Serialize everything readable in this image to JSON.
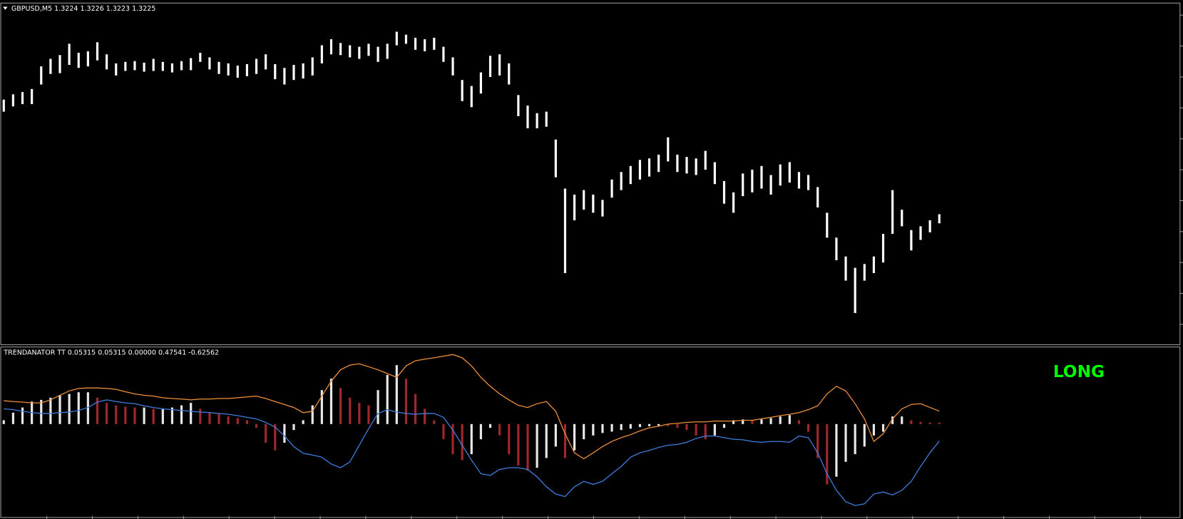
{
  "price_panel": {
    "label": "GBPUSD,M5  1.3224 1.3226 1.3223 1.3225",
    "ylim": [
      1.32085,
      1.32535
    ],
    "color": "#ffffff",
    "high": [
      1.32408,
      1.32415,
      1.32418,
      1.32422,
      1.32452,
      1.32462,
      1.32467,
      1.32482,
      1.3247,
      1.32472,
      1.32484,
      1.32468,
      1.32456,
      1.32458,
      1.32459,
      1.32457,
      1.32462,
      1.32458,
      1.32456,
      1.32459,
      1.32463,
      1.3247,
      1.32464,
      1.32458,
      1.32456,
      1.32453,
      1.32455,
      1.32462,
      1.32468,
      1.32455,
      1.3245,
      1.32454,
      1.32456,
      1.32464,
      1.3248,
      1.32488,
      1.32483,
      1.3248,
      1.32478,
      1.32482,
      1.32478,
      1.32482,
      1.32498,
      1.32494,
      1.3249,
      1.32488,
      1.3249,
      1.32478,
      1.32464,
      1.32434,
      1.32426,
      1.32444,
      1.32466,
      1.32468,
      1.32456,
      1.32414,
      1.324,
      1.3239,
      1.32392,
      1.32355,
      1.3229,
      1.32282,
      1.32288,
      1.32282,
      1.32275,
      1.32302,
      1.32312,
      1.3232,
      1.32328,
      1.3233,
      1.32335,
      1.32358,
      1.32335,
      1.32332,
      1.3233,
      1.3234,
      1.32325,
      1.323,
      1.32285,
      1.3231,
      1.32315,
      1.3232,
      1.32308,
      1.32322,
      1.32325,
      1.32312,
      1.32308,
      1.32292,
      1.32258,
      1.32225,
      1.322,
      1.32185,
      1.3219,
      1.322,
      1.3223,
      1.32288,
      1.32262,
      1.32235,
      1.3224,
      1.32248,
      1.32256
    ],
    "low": [
      1.32392,
      1.32399,
      1.32402,
      1.32402,
      1.32428,
      1.32442,
      1.32443,
      1.32454,
      1.3245,
      1.32452,
      1.3246,
      1.32448,
      1.3244,
      1.32446,
      1.32447,
      1.32445,
      1.32446,
      1.32446,
      1.32444,
      1.32447,
      1.32447,
      1.32458,
      1.32448,
      1.32442,
      1.3244,
      1.32437,
      1.32439,
      1.32442,
      1.32448,
      1.32435,
      1.32428,
      1.32434,
      1.32436,
      1.3244,
      1.32456,
      1.32468,
      1.32467,
      1.32464,
      1.32462,
      1.32466,
      1.32458,
      1.32462,
      1.3248,
      1.32482,
      1.32474,
      1.32472,
      1.32474,
      1.32458,
      1.3244,
      1.32406,
      1.32398,
      1.32416,
      1.32438,
      1.3244,
      1.32428,
      1.32386,
      1.3237,
      1.3237,
      1.32372,
      1.32305,
      1.32178,
      1.32248,
      1.32262,
      1.32258,
      1.32253,
      1.32278,
      1.32288,
      1.32296,
      1.32302,
      1.32306,
      1.32312,
      1.32326,
      1.32312,
      1.3231,
      1.32308,
      1.32315,
      1.32296,
      1.3227,
      1.32258,
      1.3228,
      1.32285,
      1.3229,
      1.32282,
      1.32294,
      1.32298,
      1.3229,
      1.32288,
      1.32265,
      1.32225,
      1.32195,
      1.32168,
      1.32125,
      1.32168,
      1.32178,
      1.32192,
      1.3223,
      1.3224,
      1.32208,
      1.32222,
      1.32232,
      1.32244
    ]
  },
  "indicator_panel": {
    "label": "TRENDANATOR TT 0.05315 0.05315 0.00000 0.47541 -0.62562",
    "ylim": [
      -3.44,
      2.81
    ],
    "histogram": {
      "rising_color": "#e8e8e8",
      "falling_color": "#a0282a",
      "values": [
        0.14,
        0.42,
        0.61,
        0.83,
        0.89,
        0.97,
        1.06,
        1.11,
        1.17,
        1.17,
        0.97,
        0.78,
        0.69,
        0.64,
        0.61,
        0.61,
        0.56,
        0.56,
        0.61,
        0.69,
        0.78,
        0.56,
        0.44,
        0.39,
        0.28,
        0.22,
        0.14,
        -0.14,
        -0.69,
        -0.97,
        -0.69,
        -0.22,
        0.14,
        0.69,
        1.25,
        1.67,
        1.33,
        0.97,
        0.78,
        0.69,
        1.25,
        1.81,
        2.17,
        1.67,
        1.11,
        0.56,
        0.14,
        -0.56,
        -1.11,
        -1.33,
        -1.11,
        -0.56,
        -0.14,
        -0.42,
        -1.11,
        -1.53,
        -1.72,
        -1.61,
        -1.25,
        -0.83,
        -1.25,
        -0.97,
        -0.56,
        -0.42,
        -0.33,
        -0.28,
        -0.22,
        -0.17,
        -0.11,
        -0.08,
        -0.06,
        -0.08,
        -0.14,
        -0.22,
        -0.42,
        -0.56,
        -0.42,
        -0.14,
        0.14,
        0.17,
        0.14,
        0.17,
        0.22,
        0.28,
        0.33,
        0.14,
        -0.28,
        -1.25,
        -2.22,
        -1.94,
        -1.39,
        -1.11,
        -0.83,
        -0.42,
        -0.28,
        0.28,
        0.28,
        0.14,
        0.08,
        0.06,
        0.05315
      ]
    },
    "lines": [
      {
        "color": "#f0903a",
        "values": [
          0.86,
          0.83,
          0.81,
          0.78,
          0.78,
          0.89,
          1.06,
          1.22,
          1.31,
          1.33,
          1.33,
          1.31,
          1.28,
          1.19,
          1.11,
          1.06,
          1.03,
          0.97,
          0.94,
          0.92,
          0.89,
          0.92,
          0.92,
          0.94,
          0.94,
          0.97,
          1.0,
          1.03,
          0.94,
          0.83,
          0.72,
          0.61,
          0.42,
          0.47,
          1.03,
          1.58,
          2.0,
          2.17,
          2.22,
          2.11,
          2.0,
          1.86,
          1.72,
          2.14,
          2.33,
          2.39,
          2.44,
          2.5,
          2.56,
          2.44,
          2.14,
          1.72,
          1.39,
          1.11,
          0.89,
          0.69,
          0.61,
          0.75,
          0.83,
          0.47,
          -0.36,
          -1.06,
          -1.28,
          -1.06,
          -0.83,
          -0.64,
          -0.5,
          -0.39,
          -0.25,
          -0.14,
          -0.08,
          0.0,
          0.03,
          0.06,
          0.08,
          0.08,
          0.11,
          0.11,
          0.11,
          0.14,
          0.14,
          0.19,
          0.25,
          0.31,
          0.36,
          0.42,
          0.53,
          0.67,
          1.11,
          1.39,
          1.22,
          0.75,
          0.19,
          -0.64,
          -0.36,
          0.19,
          0.56,
          0.72,
          0.75,
          0.61,
          0.47541
        ]
      },
      {
        "color": "#3f7fe0",
        "values": [
          0.56,
          0.53,
          0.47,
          0.42,
          0.39,
          0.39,
          0.42,
          0.44,
          0.5,
          0.61,
          0.81,
          0.89,
          0.83,
          0.78,
          0.75,
          0.67,
          0.61,
          0.56,
          0.53,
          0.5,
          0.47,
          0.44,
          0.42,
          0.39,
          0.36,
          0.31,
          0.25,
          0.19,
          0.06,
          -0.11,
          -0.44,
          -0.83,
          -1.08,
          -1.14,
          -1.22,
          -1.47,
          -1.61,
          -1.39,
          -0.78,
          -0.17,
          0.39,
          0.53,
          0.44,
          0.39,
          0.36,
          0.39,
          0.39,
          0.25,
          -0.22,
          -0.78,
          -1.33,
          -1.83,
          -1.89,
          -1.67,
          -1.61,
          -1.61,
          -1.67,
          -1.94,
          -2.31,
          -2.58,
          -2.67,
          -2.31,
          -2.11,
          -2.22,
          -2.11,
          -1.83,
          -1.56,
          -1.22,
          -1.06,
          -0.97,
          -0.86,
          -0.78,
          -0.75,
          -0.67,
          -0.53,
          -0.44,
          -0.44,
          -0.5,
          -0.56,
          -0.58,
          -0.64,
          -0.67,
          -0.64,
          -0.64,
          -0.67,
          -0.44,
          -0.5,
          -1.06,
          -1.83,
          -2.44,
          -2.86,
          -3.0,
          -2.94,
          -2.58,
          -2.5,
          -2.61,
          -2.44,
          -2.11,
          -1.56,
          -1.06,
          -0.62562
        ]
      }
    ]
  },
  "signal": {
    "text": "LONG",
    "color": "#00ff00"
  }
}
